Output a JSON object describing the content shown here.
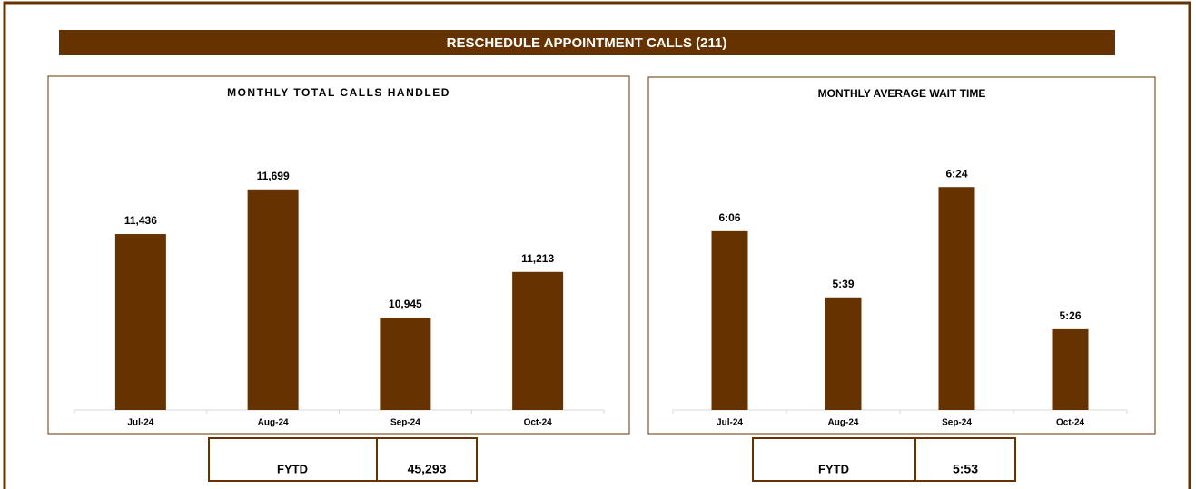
{
  "title": "RESCHEDULE APPOINTMENT CALLS (211)",
  "chart_data": [
    {
      "type": "bar",
      "title": "MONTHLY TOTAL CALLS HANDLED",
      "categories": [
        "Jul-24",
        "Aug-24",
        "Sep-24",
        "Oct-24"
      ],
      "values": [
        11436,
        11699,
        10945,
        11213
      ],
      "value_labels": [
        "11,436",
        "11,699",
        "10,945",
        "11,213"
      ],
      "color": "#663300",
      "ylim": [
        10400,
        12200
      ]
    },
    {
      "type": "bar",
      "title": "MONTHLY AVERAGE WAIT TIME",
      "categories": [
        "Jul-24",
        "Aug-24",
        "Sep-24",
        "Oct-24"
      ],
      "values": [
        366,
        339,
        384,
        326
      ],
      "value_labels": [
        "6:06",
        "5:39",
        "6:24",
        "5:26"
      ],
      "color": "#663300",
      "ylim": [
        293,
        420
      ]
    }
  ],
  "fytd": [
    {
      "label": "FYTD",
      "value": "45,293"
    },
    {
      "label": "FYTD",
      "value": "5:53"
    }
  ]
}
